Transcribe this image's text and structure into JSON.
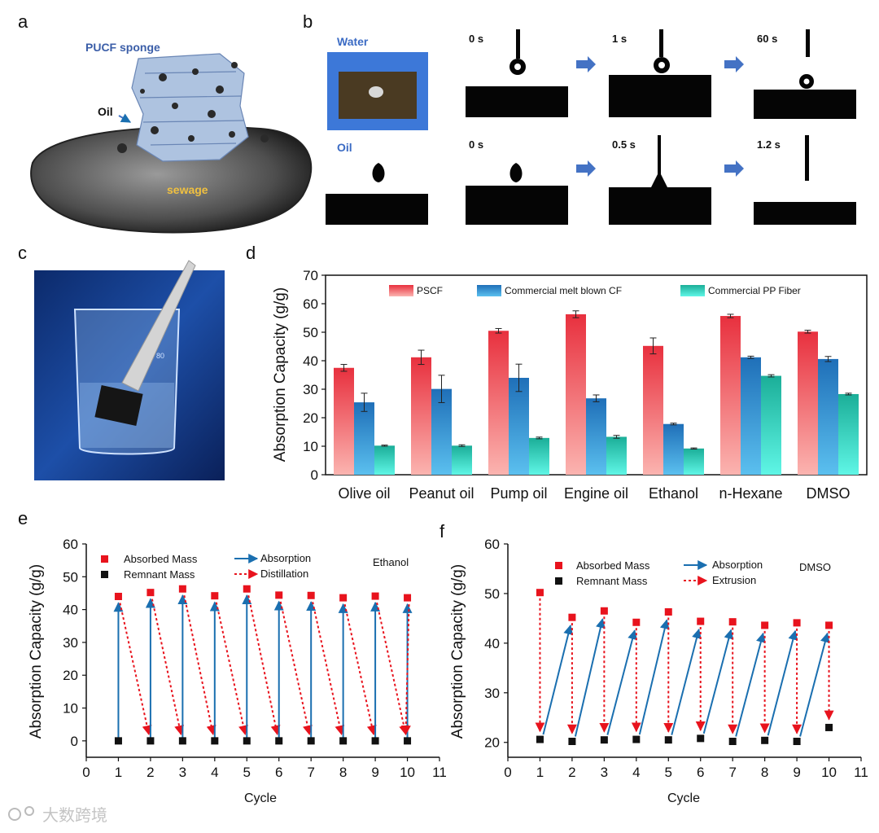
{
  "panels": {
    "a": "a",
    "b": "b",
    "c": "c",
    "d": "d",
    "e": "e",
    "f": "f"
  },
  "panel_a": {
    "sponge_label": "PUCF sponge",
    "oil_label": "Oil",
    "sewage_label": "sewage"
  },
  "panel_b": {
    "water_label": "Water",
    "oil_label": "Oil",
    "water_times": [
      "0 s",
      "1 s",
      "60 s"
    ],
    "oil_times": [
      "0 s",
      "0.5 s",
      "1.2 s"
    ]
  },
  "watermark": "大数跨境",
  "colors": {
    "pscf": "#e8505a",
    "meltblown": "#2a7fc8",
    "pp": "#2ecfb8",
    "absorbed": "#e8131d",
    "remnant": "#111111",
    "absorption_arrow": "#1a6fb0",
    "distill_arrow": "#e8131d",
    "arrow_blue": "#4472c4"
  },
  "chart_data": [
    {
      "id": "d",
      "type": "bar",
      "title": "",
      "xlabel": "",
      "ylabel": "Absorption Capacity (g/g)",
      "ylim": [
        0,
        70
      ],
      "yticks": [
        0,
        10,
        20,
        30,
        40,
        50,
        60,
        70
      ],
      "categories": [
        "Olive oil",
        "Peanut oil",
        "Pump oil",
        "Engine oil",
        "Ethanol",
        "n-Hexane",
        "DMSO"
      ],
      "series": [
        {
          "name": "PSCF",
          "values": [
            37.5,
            41.2,
            50.5,
            56.3,
            45.2,
            55.7,
            50.2
          ],
          "errors": [
            1.2,
            2.5,
            0.8,
            1.2,
            2.8,
            0.6,
            0.5
          ]
        },
        {
          "name": "Commercial melt blown CF",
          "values": [
            25.4,
            30.1,
            34.0,
            26.8,
            17.8,
            41.2,
            40.6
          ],
          "errors": [
            3.2,
            4.8,
            4.8,
            1.2,
            0.3,
            0.4,
            0.9
          ]
        },
        {
          "name": "Commercial PP Fiber",
          "values": [
            10.2,
            10.2,
            12.9,
            13.3,
            9.2,
            34.7,
            28.3
          ],
          "errors": [
            0.2,
            0.3,
            0.3,
            0.5,
            0.2,
            0.4,
            0.3
          ]
        }
      ],
      "legend_position": "top"
    },
    {
      "id": "e",
      "type": "scatter",
      "xlabel": "Cycle",
      "ylabel": "Absorption Capacity (g/g)",
      "xlim": [
        0,
        11
      ],
      "ylim": [
        -5,
        60
      ],
      "xticks": [
        0,
        1,
        2,
        3,
        4,
        5,
        6,
        7,
        8,
        9,
        10,
        11
      ],
      "yticks": [
        0,
        10,
        20,
        30,
        40,
        50,
        60
      ],
      "annotation": "Ethanol",
      "series": [
        {
          "name": "Absorbed Mass",
          "x": [
            1,
            2,
            3,
            4,
            5,
            6,
            7,
            8,
            9,
            10
          ],
          "values": [
            44.0,
            45.2,
            46.3,
            44.2,
            46.3,
            44.4,
            44.3,
            43.6,
            44.1,
            43.6
          ]
        },
        {
          "name": "Remnant Mass",
          "x": [
            1,
            2,
            3,
            4,
            5,
            6,
            7,
            8,
            9,
            10
          ],
          "values": [
            0,
            0,
            0,
            0,
            0,
            0,
            0,
            0,
            0,
            0
          ]
        }
      ],
      "arrows": [
        {
          "name": "Absorption"
        },
        {
          "name": "Distillation"
        }
      ],
      "legend_position": "top"
    },
    {
      "id": "f",
      "type": "scatter",
      "xlabel": "Cycle",
      "ylabel": "Absorption Capacity (g/g)",
      "xlim": [
        0,
        11
      ],
      "ylim": [
        17,
        60
      ],
      "xticks": [
        0,
        1,
        2,
        3,
        4,
        5,
        6,
        7,
        8,
        9,
        10,
        11
      ],
      "yticks": [
        20,
        30,
        40,
        50,
        60
      ],
      "annotation": "DMSO",
      "series": [
        {
          "name": "Absorbed Mass",
          "x": [
            1,
            2,
            3,
            4,
            5,
            6,
            7,
            8,
            9,
            10
          ],
          "values": [
            50.2,
            45.2,
            46.5,
            44.2,
            46.3,
            44.4,
            44.3,
            43.6,
            44.1,
            43.6
          ]
        },
        {
          "name": "Remnant Mass",
          "x": [
            1,
            2,
            3,
            4,
            5,
            6,
            7,
            8,
            9,
            10
          ],
          "values": [
            20.6,
            20.2,
            20.5,
            20.6,
            20.5,
            20.8,
            20.2,
            20.4,
            20.2,
            23.0
          ]
        }
      ],
      "arrows": [
        {
          "name": "Absorption"
        },
        {
          "name": "Extrusion"
        }
      ],
      "legend_position": "top"
    }
  ]
}
